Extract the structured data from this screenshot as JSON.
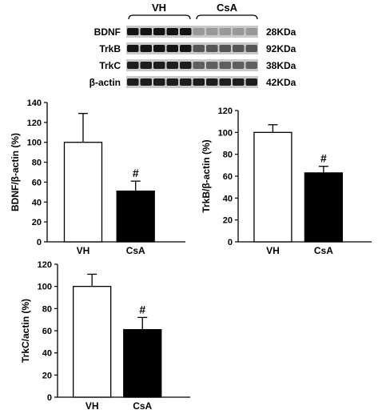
{
  "blot": {
    "groups": [
      "VH",
      "CsA"
    ],
    "rows": [
      {
        "protein": "BDNF",
        "size": "28KDa",
        "vh_level": 0.95,
        "csa_level": 0.25
      },
      {
        "protein": "TrkB",
        "size": "92KDa",
        "vh_level": 0.95,
        "csa_level": 0.6
      },
      {
        "protein": "TrkC",
        "size": "38KDa",
        "vh_level": 0.9,
        "csa_level": 0.55
      },
      {
        "protein": "β-actin",
        "size": "42KDa",
        "vh_level": 0.9,
        "csa_level": 0.9
      }
    ]
  },
  "colors": {
    "vh_bar": "#ffffff",
    "csa_bar": "#000000",
    "stroke": "#000000"
  },
  "chart_data": [
    {
      "type": "bar",
      "categories": [
        "VH",
        "CsA"
      ],
      "values": [
        100,
        51
      ],
      "errors": [
        29,
        10
      ],
      "significance": [
        "",
        "#"
      ],
      "ylabel": "BDNF/β-actin (%)",
      "ylim": [
        0,
        140
      ],
      "yticks": [
        0,
        20,
        40,
        60,
        80,
        100,
        120,
        140
      ],
      "grid": false
    },
    {
      "type": "bar",
      "categories": [
        "VH",
        "CsA"
      ],
      "values": [
        100,
        63
      ],
      "errors": [
        7,
        6
      ],
      "significance": [
        "",
        "#"
      ],
      "ylabel": "TrkB/β-actin (%)",
      "ylim": [
        0,
        120
      ],
      "yticks": [
        0,
        20,
        40,
        60,
        80,
        100,
        120
      ],
      "grid": false
    },
    {
      "type": "bar",
      "categories": [
        "VH",
        "CsA"
      ],
      "values": [
        100,
        61
      ],
      "errors": [
        11,
        11
      ],
      "significance": [
        "",
        "#"
      ],
      "ylabel": "TrkC/actin (%)",
      "ylim": [
        0,
        120
      ],
      "yticks": [
        0,
        20,
        40,
        60,
        80,
        100,
        120
      ],
      "grid": false
    }
  ]
}
